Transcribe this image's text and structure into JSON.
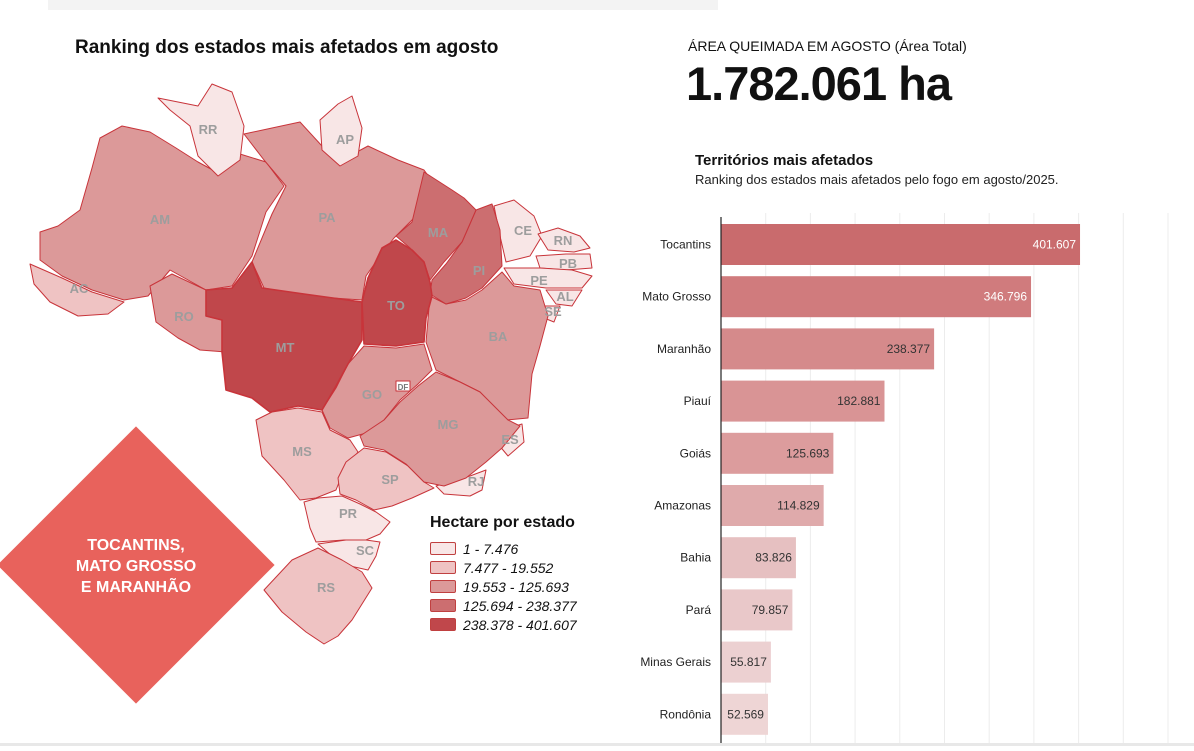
{
  "map": {
    "title": "Ranking dos estados mais afetados em agosto",
    "state_labels": [
      "RR",
      "AP",
      "AM",
      "PA",
      "MA",
      "CE",
      "RN",
      "PB",
      "PI",
      "PE",
      "AL",
      "SE",
      "AC",
      "RO",
      "TO",
      "MT",
      "BA",
      "GO",
      "DF",
      "MG",
      "MS",
      "ES",
      "SP",
      "RJ",
      "PR",
      "SC",
      "RS"
    ],
    "colors": {
      "class1": "#f8e6e6",
      "class2": "#efc3c3",
      "class3": "#dc9999",
      "class4": "#cc6e70",
      "class5": "#c0474b"
    },
    "legend": {
      "title": "Hectare por estado",
      "items": [
        {
          "label": "1 - 7.476",
          "color": "#f8e6e6"
        },
        {
          "label": "7.477 - 19.552",
          "color": "#efc3c3"
        },
        {
          "label": "19.553 - 125.693",
          "color": "#dc9999"
        },
        {
          "label": "125.694 - 238.377",
          "color": "#cc6e70"
        },
        {
          "label": "238.378 - 401.607",
          "color": "#c0474b"
        }
      ]
    },
    "highlight": {
      "lines": [
        "TOCANTINS,",
        "MATO GROSSO",
        "E MARANHÃO"
      ],
      "color": "#e8625c"
    }
  },
  "kpi": {
    "label": "ÁREA QUEIMADA EM AGOSTO (Área Total)",
    "value": "1.782.061 ha"
  },
  "chart_data": {
    "type": "bar",
    "orientation": "horizontal",
    "title": "Territórios mais afetados",
    "subtitle": "Ranking dos estados mais afetados pelo fogo em agosto/2025.",
    "categories": [
      "Tocantins",
      "Mato Grosso",
      "Maranhão",
      "Piauí",
      "Goiás",
      "Amazonas",
      "Bahia",
      "Pará",
      "Minas Gerais",
      "Rondônia"
    ],
    "values": [
      401607,
      346796,
      238377,
      182881,
      125693,
      114829,
      83826,
      79857,
      55817,
      52569
    ],
    "value_labels": [
      "401.607",
      "346.796",
      "238.377",
      "182.881",
      "125.693",
      "114.829",
      "83.826",
      "79.857",
      "55.817",
      "52.569"
    ],
    "xlim": [
      0,
      500000
    ],
    "grid": true,
    "bar_colors": [
      "#c96b6d",
      "#d07b7d",
      "#d58a8b",
      "#d99495",
      "#dc9c9d",
      "#dfaaab",
      "#e6c0c1",
      "#e9c8c9",
      "#ecd0d1",
      "#eed5d5"
    ]
  }
}
